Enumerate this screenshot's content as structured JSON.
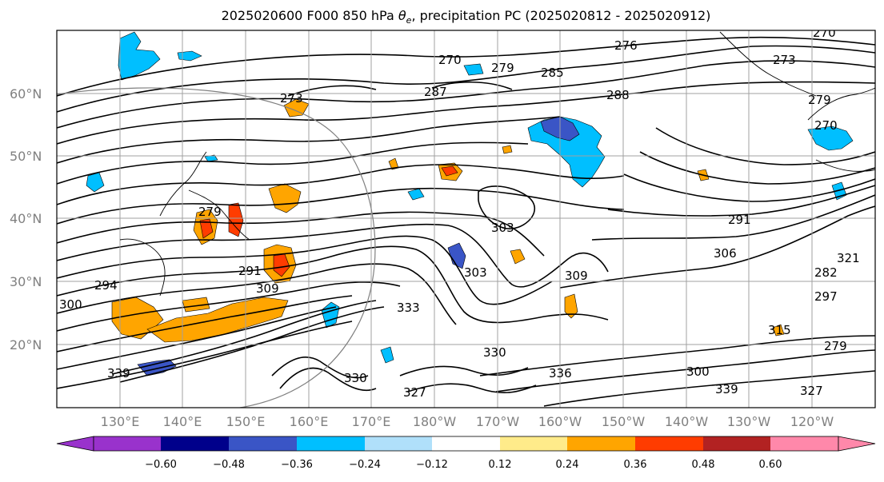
{
  "title_prefix": "2025020600 F000 850 hPa ",
  "title_symbol": "θ",
  "title_subscript": "e",
  "title_suffix": ", precipitation PC (2025020812 - 2025020912)",
  "lat_labels": [
    "60°N",
    "50°N",
    "40°N",
    "30°N",
    "20°N"
  ],
  "lon_labels": [
    "130°E",
    "140°E",
    "150°E",
    "160°E",
    "170°E",
    "180°W",
    "170°W",
    "160°W",
    "150°W",
    "140°W",
    "130°W",
    "120°W"
  ],
  "contour_labels": [
    "270",
    "279",
    "276",
    "287",
    "285",
    "288",
    "273",
    "273",
    "279",
    "270",
    "270",
    "294",
    "300",
    "291",
    "309",
    "303",
    "291",
    "306",
    "333",
    "309",
    "339",
    "330",
    "327",
    "279",
    "297",
    "330",
    "336",
    "339",
    "327",
    "282",
    "303",
    "315",
    "300",
    "279",
    "321"
  ],
  "colorbar": {
    "colors": [
      "#9932cc",
      "#00008b",
      "#3a55c6",
      "#00bfff",
      "#b0e0fa",
      "#ffffff",
      "#ffeb8a",
      "#ffa500",
      "#ff3c00",
      "#b22222",
      "#ff88aa"
    ],
    "tick_labels": [
      "−0.60",
      "−0.48",
      "−0.36",
      "−0.24",
      "−0.12",
      "0.12",
      "0.24",
      "0.36",
      "0.48",
      "0.60"
    ]
  }
}
